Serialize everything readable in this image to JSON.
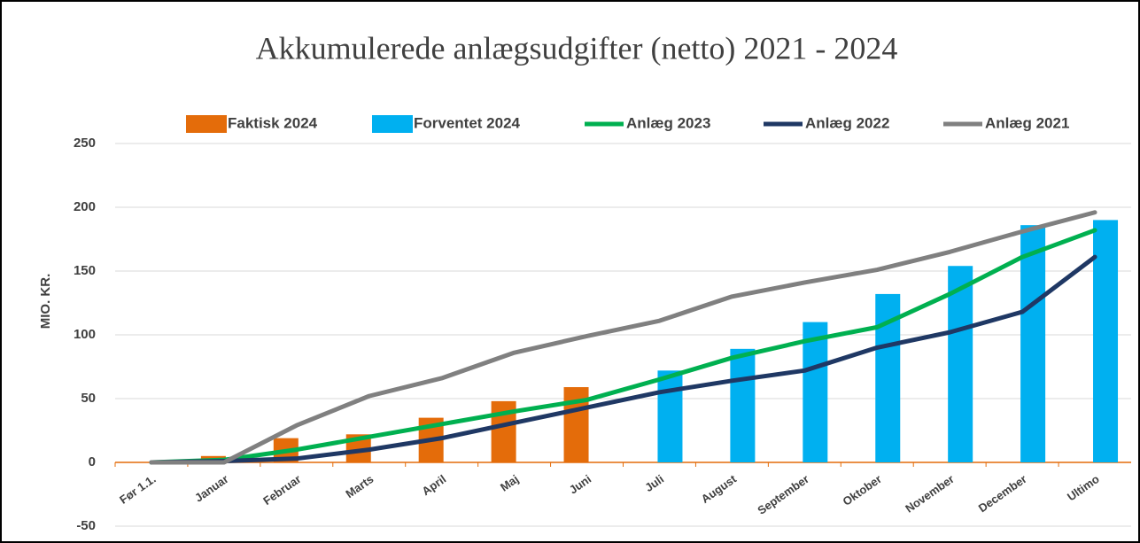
{
  "chart_data": {
    "type": "combo",
    "title": "Akkumulerede anlægsudgifter (netto) 2021 - 2024",
    "y_label": "MIO. KR.",
    "categories": [
      "Før 1.1.",
      "Januar",
      "Februar",
      "Marts",
      "April",
      "Maj",
      "Juni",
      "Juli",
      "August",
      "September",
      "Oktober",
      "November",
      "December",
      "Ultimo"
    ],
    "series": [
      {
        "name": "Faktisk 2024",
        "type": "bar",
        "color": "#e46c0a",
        "values": [
          0,
          5,
          19,
          22,
          35,
          48,
          59,
          null,
          null,
          null,
          null,
          null,
          null,
          null
        ]
      },
      {
        "name": "Forventet 2024",
        "type": "bar",
        "color": "#00b0f0",
        "values": [
          null,
          null,
          null,
          null,
          null,
          null,
          null,
          72,
          89,
          110,
          132,
          154,
          186,
          190
        ]
      },
      {
        "name": "Anlæg 2023",
        "type": "line",
        "color": "#00b050",
        "values": [
          0,
          2,
          10,
          20,
          30,
          40,
          49,
          65,
          82,
          95,
          106,
          132,
          161,
          182
        ]
      },
      {
        "name": "Anlæg 2022",
        "type": "line",
        "color": "#1f3864",
        "values": [
          0,
          1,
          3,
          10,
          19,
          31,
          43,
          55,
          64,
          72,
          90,
          102,
          118,
          161
        ]
      },
      {
        "name": "Anlæg 2021",
        "type": "line",
        "color": "#808080",
        "values": [
          0,
          0,
          29,
          52,
          66,
          86,
          99,
          111,
          130,
          141,
          151,
          165,
          181,
          196
        ]
      }
    ],
    "ylim": [
      -50,
      250
    ],
    "yticks": [
      -50,
      0,
      50,
      100,
      150,
      200,
      250
    ],
    "grid": true,
    "legend": "top"
  }
}
